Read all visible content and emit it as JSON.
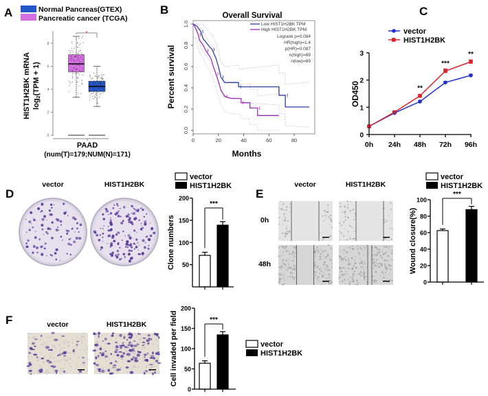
{
  "panel_labels": [
    "A",
    "B",
    "C",
    "D",
    "E",
    "F"
  ],
  "colors": {
    "normal_blue": "#2356c9",
    "cancer_pink": "#d56ee0",
    "km_low": "#2b3fa0",
    "km_high": "#a52bc0",
    "vector_line": "#1f2fd0",
    "hist_line": "#d8242b",
    "bar_fill_hist": "#000000",
    "bar_fill_vector": "#ffffff",
    "stain_purple": "#5b3c9e"
  },
  "chart_data": [
    {
      "id": "A",
      "type": "box",
      "legend": [
        "Normal Pancreas(GTEX)",
        "Pancreatic cancer (TCGA)"
      ],
      "ylabel": "HIST1H2BK mRNA",
      "ylabel2_pre": "log",
      "ylabel2_sub": "2",
      "ylabel2_post": "(TPM + 1)",
      "yticks": [
        0,
        2,
        4,
        6,
        8
      ],
      "ylim": [
        0,
        9
      ],
      "xlabel": "PAAD",
      "xsublabel": "(num(T)=179;NUM(N)=171)",
      "significance": "*",
      "boxes": [
        {
          "group": "Pancreatic cancer (TCGA)",
          "color": "#d56ee0",
          "q1": 5.5,
          "median": 6.2,
          "q3": 7.0,
          "whisker_low": 3.3,
          "whisker_high": 8.6,
          "n": 179
        },
        {
          "group": "Normal Pancreas(GTEX)",
          "color": "#2356c9",
          "q1": 3.8,
          "median": 4.25,
          "q3": 4.7,
          "whisker_low": 2.5,
          "whisker_high": 6.0,
          "n": 171
        }
      ]
    },
    {
      "id": "B",
      "type": "line",
      "subtype": "kaplan-meier",
      "title": "Overall Survival",
      "xlabel": "Months",
      "ylabel": "Percent survival",
      "xticks": [
        0,
        20,
        40,
        60,
        80
      ],
      "yticks": [
        "0.0",
        "0.2",
        "0.4",
        "0.6",
        "0.8",
        "1.0"
      ],
      "xlim": [
        0,
        95
      ],
      "ylim": [
        0,
        1
      ],
      "legend": [
        "Low HIST1H2BK TPM",
        "High HIST1H2BK TPM"
      ],
      "stats": [
        "Logrank p=0.084",
        "HR(high)=1.4",
        "p(HR)=0.087",
        "n(high)=89",
        "n(low)=89"
      ],
      "series": [
        {
          "name": "Low HIST1H2BK TPM",
          "color": "#2b3fa0",
          "points": [
            [
              0,
              1
            ],
            [
              3,
              0.98
            ],
            [
              6,
              0.93
            ],
            [
              8,
              0.86
            ],
            [
              12,
              0.8
            ],
            [
              15,
              0.76
            ],
            [
              18,
              0.68
            ],
            [
              20,
              0.6
            ],
            [
              22,
              0.5
            ],
            [
              25,
              0.45
            ],
            [
              36,
              0.45
            ],
            [
              36,
              0.41
            ],
            [
              68,
              0.41
            ],
            [
              68,
              0.33
            ],
            [
              73,
              0.33
            ],
            [
              73,
              0.22
            ],
            [
              92,
              0.22
            ]
          ]
        },
        {
          "name": "High HIST1H2BK TPM",
          "color": "#a52bc0",
          "points": [
            [
              0,
              1
            ],
            [
              2,
              0.96
            ],
            [
              4,
              0.9
            ],
            [
              5,
              0.85
            ],
            [
              8,
              0.8
            ],
            [
              10,
              0.75
            ],
            [
              14,
              0.68
            ],
            [
              16,
              0.6
            ],
            [
              18,
              0.53
            ],
            [
              20,
              0.46
            ],
            [
              22,
              0.38
            ],
            [
              25,
              0.32
            ],
            [
              30,
              0.3
            ],
            [
              38,
              0.3
            ],
            [
              38,
              0.26
            ],
            [
              45,
              0.26
            ],
            [
              45,
              0.21
            ],
            [
              51,
              0.21
            ],
            [
              51,
              0.14
            ],
            [
              68,
              0.14
            ]
          ]
        }
      ]
    },
    {
      "id": "C",
      "type": "line",
      "ylabel": "OD450",
      "categories": [
        "0h",
        "24h",
        "48h",
        "72h",
        "96h"
      ],
      "yticks": [
        0,
        1,
        2,
        3
      ],
      "ylim": [
        0,
        3
      ],
      "series": [
        {
          "name": "vector",
          "color": "#1f2fd0",
          "marker": "circle",
          "values": [
            0.3,
            0.79,
            1.21,
            1.91,
            2.17
          ],
          "errors": [
            0.02,
            0.03,
            0.03,
            0.04,
            0.04
          ]
        },
        {
          "name": "HIST1H2BK",
          "color": "#d8242b",
          "marker": "square",
          "values": [
            0.3,
            0.82,
            1.42,
            2.33,
            2.67
          ],
          "errors": [
            0.02,
            0.03,
            0.05,
            0.08,
            0.07
          ]
        }
      ],
      "annotations": [
        "",
        "",
        "**",
        "***",
        "**"
      ]
    },
    {
      "id": "D",
      "type": "bar",
      "ylabel": "Clone numbers",
      "yticks": [
        50,
        100,
        150,
        200
      ],
      "ylim": [
        0,
        200
      ],
      "legend": [
        "vector",
        "HIST1H2BK"
      ],
      "significance": "***",
      "series": [
        {
          "name": "vector",
          "value": 71,
          "error": 7
        },
        {
          "name": "HIST1H2BK",
          "value": 139,
          "error": 8
        }
      ]
    },
    {
      "id": "E",
      "type": "bar",
      "ylabel": "Wound closure(%)",
      "yticks": [
        0,
        20,
        40,
        60,
        80,
        100
      ],
      "ylim": [
        0,
        100
      ],
      "legend": [
        "vector",
        "HIST1H2BK"
      ],
      "significance": "***",
      "series": [
        {
          "name": "vector",
          "value": 62.5,
          "error": 2
        },
        {
          "name": "HIST1H2BK",
          "value": 88,
          "error": 4
        }
      ]
    },
    {
      "id": "F",
      "type": "bar",
      "ylabel": "Cell invaded per field",
      "yticks": [
        0,
        50,
        100,
        150,
        200
      ],
      "ylim": [
        0,
        200
      ],
      "legend": [
        "vector",
        "HIST1H2BK"
      ],
      "significance": "***",
      "series": [
        {
          "name": "vector",
          "value": 64,
          "error": 6
        },
        {
          "name": "HIST1H2BK",
          "value": 134,
          "error": 8
        }
      ]
    }
  ],
  "image_panels": {
    "D": {
      "columns": [
        "vector",
        "HIST1H2BK"
      ]
    },
    "E": {
      "columns": [
        "vector",
        "HIST1H2BK"
      ],
      "rows": [
        "0h",
        "48h"
      ]
    },
    "F": {
      "columns": [
        "vector",
        "HIST1H2BK"
      ]
    }
  }
}
